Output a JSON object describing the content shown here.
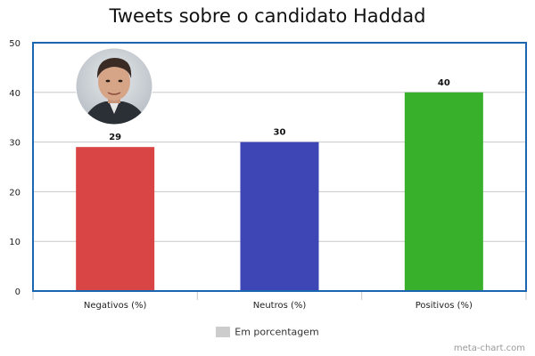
{
  "chart_data": {
    "type": "bar",
    "title": "Tweets sobre o candidato Haddad",
    "categories": [
      "Negativos (%)",
      "Neutros (%)",
      "Positivos (%)"
    ],
    "values": [
      29,
      30,
      40
    ],
    "colors": [
      "#d94545",
      "#3d46b4",
      "#38b02b"
    ],
    "ylim": [
      0,
      50
    ],
    "yticks": [
      0,
      10,
      20,
      30,
      40,
      50
    ],
    "grid": true,
    "legend": {
      "placement": "bottom",
      "label": "Em porcentagem",
      "color": "#cccccc"
    },
    "frame_color": "#1a66b0"
  },
  "credit": "meta-chart.com",
  "photo": {
    "icon": "candidate-portrait-icon"
  }
}
